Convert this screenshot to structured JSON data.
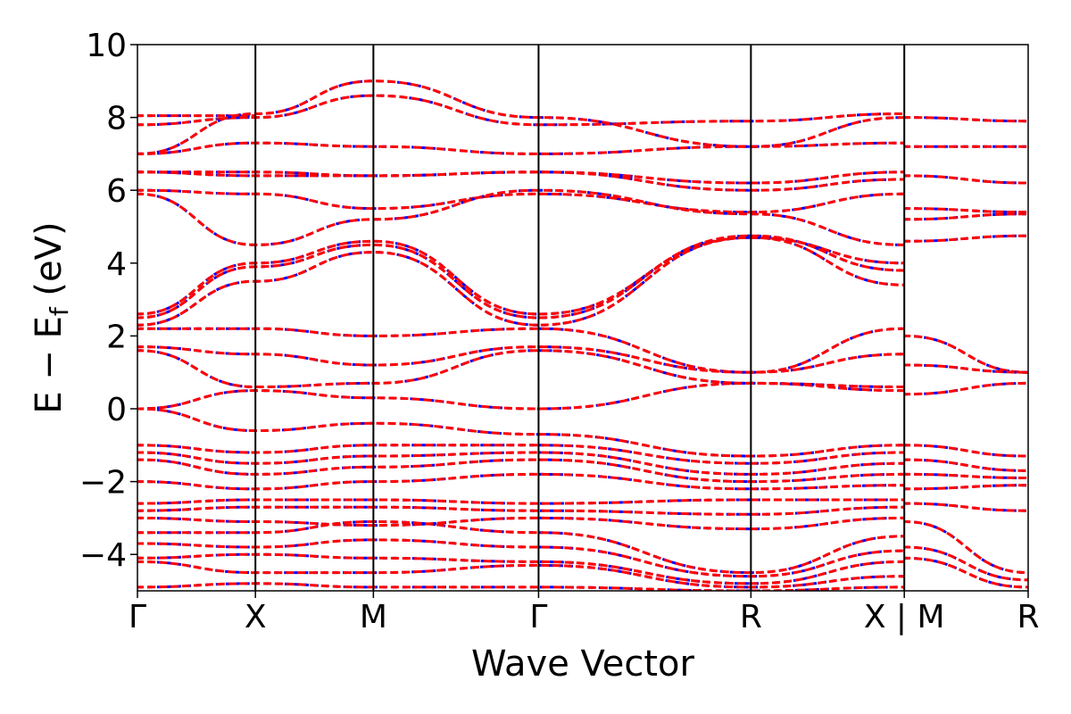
{
  "chart_data": {
    "type": "line",
    "xlabel": "Wave Vector",
    "ylabel_parts": [
      "E − E",
      "f",
      " (eV)"
    ],
    "ylim": [
      -5,
      10
    ],
    "yticks": [
      -4,
      -2,
      0,
      2,
      4,
      6,
      8,
      10
    ],
    "ytick_labels": [
      "−4",
      "−2",
      "0",
      "2",
      "4",
      "6",
      "8",
      "10"
    ],
    "xlim": [
      0,
      7.55
    ],
    "xticks": [
      0,
      1,
      2,
      3.4,
      5.2,
      6.5,
      7.55
    ],
    "xtick_labels": [
      "Γ",
      "X",
      "M",
      "Γ",
      "R",
      "X | M",
      "R"
    ],
    "series_colors": {
      "dashed": "#0000ff",
      "solid": "#ff0000"
    },
    "bands": [
      {
        "x": [
          0,
          1
        ],
        "y": [
          8.05,
          8.05
        ]
      },
      {
        "x": [
          0,
          1,
          2,
          3.4,
          5.2,
          6.5
        ],
        "y": [
          7.8,
          8.0,
          8.6,
          7.8,
          7.9,
          8.1
        ]
      },
      {
        "x": [
          0,
          1,
          2,
          3.4,
          5.2,
          6.5
        ],
        "y": [
          7.0,
          8.1,
          9.0,
          8.0,
          7.2,
          8.0
        ]
      },
      {
        "x": [
          0,
          1,
          2,
          3.4,
          5.2,
          6.5
        ],
        "y": [
          7.0,
          7.3,
          7.2,
          7.0,
          7.2,
          7.3
        ]
      },
      {
        "x": [
          0,
          1,
          2,
          3.4,
          5.2,
          6.5
        ],
        "y": [
          6.5,
          6.5,
          6.4,
          6.5,
          6.2,
          6.5
        ]
      },
      {
        "x": [
          0,
          1,
          2,
          3.4,
          5.2,
          6.5
        ],
        "y": [
          6.5,
          6.4,
          6.4,
          6.5,
          6.0,
          6.3
        ]
      },
      {
        "x": [
          0,
          1,
          2,
          3.4,
          5.2,
          6.5
        ],
        "y": [
          6.0,
          5.9,
          5.5,
          5.9,
          5.4,
          5.9
        ]
      },
      {
        "x": [
          0,
          1,
          2,
          3.4,
          5.2,
          6.5
        ],
        "y": [
          5.9,
          4.5,
          5.2,
          6.0,
          5.35,
          4.5
        ]
      },
      {
        "x": [
          0,
          1,
          2,
          3.4,
          5.2,
          6.5
        ],
        "y": [
          2.6,
          4.0,
          4.6,
          2.6,
          4.7,
          4.0
        ]
      },
      {
        "x": [
          0,
          1,
          2,
          3.4,
          5.2,
          6.5
        ],
        "y": [
          2.5,
          3.9,
          4.5,
          2.5,
          4.75,
          3.8
        ]
      },
      {
        "x": [
          0,
          1,
          2,
          3.4,
          5.2,
          6.5
        ],
        "y": [
          2.3,
          3.5,
          4.3,
          2.3,
          4.7,
          3.4
        ]
      },
      {
        "x": [
          0,
          1,
          2,
          3.4,
          5.2,
          6.5
        ],
        "y": [
          2.2,
          2.2,
          2.0,
          2.2,
          1.0,
          2.2
        ]
      },
      {
        "x": [
          0,
          1,
          2,
          3.4,
          5.2,
          6.5
        ],
        "y": [
          1.7,
          1.5,
          1.2,
          1.7,
          1.0,
          1.5
        ]
      },
      {
        "x": [
          0,
          1,
          2,
          3.4,
          5.2,
          6.5
        ],
        "y": [
          1.6,
          0.6,
          0.7,
          1.6,
          0.7,
          0.5
        ]
      },
      {
        "x": [
          0,
          1,
          2,
          3.4,
          5.2,
          6.5
        ],
        "y": [
          0.0,
          0.5,
          0.3,
          0.0,
          0.7,
          0.6
        ]
      },
      {
        "x": [
          0,
          1,
          2,
          3.4,
          5.2,
          6.5
        ],
        "y": [
          0.0,
          -0.6,
          -0.4,
          -0.7,
          -1.3,
          -1.0
        ]
      },
      {
        "x": [
          0,
          1,
          2,
          3.4,
          5.2,
          6.5
        ],
        "y": [
          -1.0,
          -1.2,
          -1.0,
          -1.0,
          -1.5,
          -1.2
        ]
      },
      {
        "x": [
          0,
          1,
          2,
          3.4,
          5.2,
          6.5
        ],
        "y": [
          -1.2,
          -1.5,
          -1.3,
          -1.2,
          -1.8,
          -1.5
        ]
      },
      {
        "x": [
          0,
          1,
          2,
          3.4,
          5.2,
          6.5
        ],
        "y": [
          -1.4,
          -1.8,
          -1.6,
          -1.4,
          -2.0,
          -1.8
        ]
      },
      {
        "x": [
          0,
          1,
          2,
          3.4,
          5.2,
          6.5
        ],
        "y": [
          -2.0,
          -2.2,
          -2.0,
          -1.8,
          -2.2,
          -2.1
        ]
      },
      {
        "x": [
          0,
          1,
          2,
          3.4,
          5.2,
          6.5
        ],
        "y": [
          -2.6,
          -2.5,
          -2.5,
          -2.6,
          -2.5,
          -2.5
        ]
      },
      {
        "x": [
          0,
          1,
          2,
          3.4,
          5.2,
          6.5
        ],
        "y": [
          -2.8,
          -2.7,
          -2.7,
          -2.8,
          -2.9,
          -2.7
        ]
      },
      {
        "x": [
          0,
          1,
          2,
          3.4,
          5.2,
          6.5
        ],
        "y": [
          -3.0,
          -3.1,
          -3.2,
          -3.0,
          -3.3,
          -3.0
        ]
      },
      {
        "x": [
          0,
          1,
          2,
          3.4,
          5.2,
          6.5
        ],
        "y": [
          -3.4,
          -3.4,
          -3.1,
          -3.4,
          -4.5,
          -3.5
        ]
      },
      {
        "x": [
          0,
          1,
          2,
          3.4,
          5.2,
          6.5
        ],
        "y": [
          -3.7,
          -3.8,
          -3.6,
          -3.8,
          -4.6,
          -3.9
        ]
      },
      {
        "x": [
          0,
          1,
          2,
          3.4,
          5.2,
          6.5
        ],
        "y": [
          -4.1,
          -4.0,
          -4.1,
          -4.2,
          -4.8,
          -4.2
        ]
      },
      {
        "x": [
          0,
          1,
          2,
          3.4,
          5.2,
          6.5
        ],
        "y": [
          -4.2,
          -4.5,
          -4.5,
          -4.3,
          -4.9,
          -4.6
        ]
      },
      {
        "x": [
          0,
          1,
          2,
          3.4,
          5.2,
          6.5
        ],
        "y": [
          -4.9,
          -4.8,
          -4.9,
          -4.9,
          -5.0,
          -4.9
        ]
      },
      {
        "x": [
          6.5,
          7.55
        ],
        "y": [
          8.0,
          7.9
        ]
      },
      {
        "x": [
          6.5,
          7.55
        ],
        "y": [
          7.2,
          7.2
        ]
      },
      {
        "x": [
          6.5,
          7.55
        ],
        "y": [
          6.4,
          6.2
        ]
      },
      {
        "x": [
          6.5,
          7.55
        ],
        "y": [
          5.5,
          5.4
        ]
      },
      {
        "x": [
          6.5,
          7.55
        ],
        "y": [
          5.2,
          5.35
        ]
      },
      {
        "x": [
          6.5,
          7.55
        ],
        "y": [
          4.6,
          4.75
        ]
      },
      {
        "x": [
          6.5,
          7.55
        ],
        "y": [
          2.0,
          1.0
        ]
      },
      {
        "x": [
          6.5,
          7.55
        ],
        "y": [
          1.2,
          1.0
        ]
      },
      {
        "x": [
          6.5,
          7.55
        ],
        "y": [
          0.4,
          0.7
        ]
      },
      {
        "x": [
          6.5,
          7.55
        ],
        "y": [
          -1.0,
          -1.3
        ]
      },
      {
        "x": [
          6.5,
          7.55
        ],
        "y": [
          -1.4,
          -1.7
        ]
      },
      {
        "x": [
          6.5,
          7.55
        ],
        "y": [
          -1.8,
          -1.9
        ]
      },
      {
        "x": [
          6.5,
          7.55
        ],
        "y": [
          -2.2,
          -2.1
        ]
      },
      {
        "x": [
          6.5,
          7.55
        ],
        "y": [
          -2.6,
          -2.8
        ]
      },
      {
        "x": [
          6.5,
          7.55
        ],
        "y": [
          -3.1,
          -4.5
        ]
      },
      {
        "x": [
          6.5,
          7.55
        ],
        "y": [
          -3.8,
          -4.7
        ]
      },
      {
        "x": [
          6.5,
          7.55
        ],
        "y": [
          -4.1,
          -4.9
        ]
      }
    ]
  }
}
